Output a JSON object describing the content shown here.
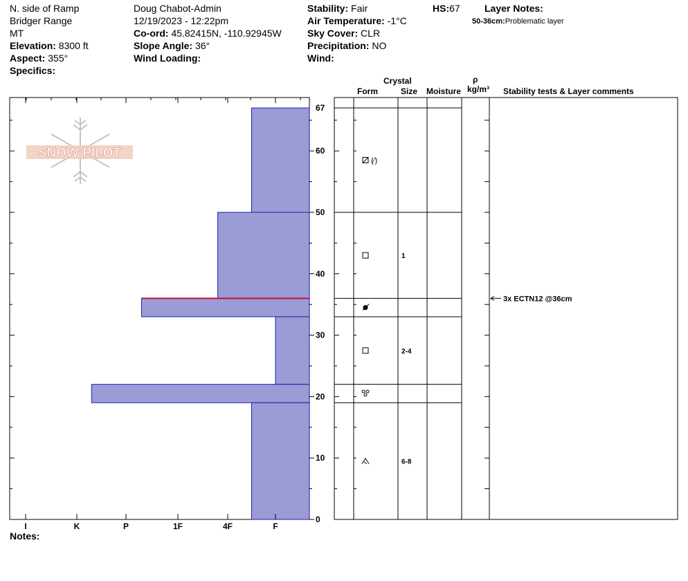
{
  "header": {
    "location": "N. side of Ramp",
    "range": "Bridger Range",
    "state": "MT",
    "elevation_label": "Elevation:",
    "elevation_value": "8300 ft",
    "aspect_label": "Aspect:",
    "aspect_value": "355°",
    "specifics_label": "Specifics:",
    "observer": "Doug Chabot-Admin",
    "datetime": "12/19/2023 - 12:22pm",
    "coord_label": "Co-ord:",
    "coord_value": "45.82415N, -110.92945W",
    "slope_label": "Slope Angle:",
    "slope_value": "36°",
    "wind_loading_label": "Wind Loading:",
    "stability_label": "Stability:",
    "stability_value": "Fair",
    "air_temp_label": "Air Temperature:",
    "air_temp_value": "-1°C",
    "sky_label": "Sky Cover:",
    "sky_value": "CLR",
    "precip_label": "Precipitation:",
    "precip_value": "NO",
    "wind_label": "Wind:",
    "hs_label": "HS:",
    "hs_value": "67",
    "layer_notes_label": "Layer Notes:",
    "layer_note_range": "50-36cm:",
    "layer_note_text": "Problematic layer"
  },
  "logo": {
    "text": "SNOW PILOT"
  },
  "columns": {
    "crystal": "Crystal",
    "form": "Form",
    "size": "Size",
    "moisture": "Moisture",
    "rho": "ρ",
    "density_unit": "kg/m³",
    "comments": "Stability tests & Layer comments"
  },
  "notes_label": "Notes:",
  "chart_data": {
    "type": "bar",
    "subtype": "snow-hardness-profile",
    "hardness_scale": [
      "I",
      "K",
      "P",
      "1F",
      "4F",
      "F"
    ],
    "ylim": [
      0,
      67
    ],
    "yticks": [
      0,
      10,
      20,
      30,
      40,
      50,
      60,
      67
    ],
    "layers": [
      {
        "bottom": 50,
        "top": 67,
        "hardness": 0.5,
        "form": "PPgp",
        "size": ""
      },
      {
        "bottom": 36,
        "top": 50,
        "hardness": 1.2,
        "form": "FC",
        "size": "1"
      },
      {
        "bottom": 33,
        "top": 36,
        "hardness": 2.7,
        "form": "MFcr",
        "size": ""
      },
      {
        "bottom": 22,
        "top": 33,
        "hardness": 0.0,
        "form": "FC",
        "size": "2-4"
      },
      {
        "bottom": 19,
        "top": 22,
        "hardness": 3.7,
        "form": "RGxf",
        "size": ""
      },
      {
        "bottom": 0,
        "top": 19,
        "hardness": 0.5,
        "form": "DH",
        "size": "6-8"
      }
    ],
    "critical_layer": 36,
    "stability_tests": [
      {
        "depth": 36,
        "text": "3x ECTN12 @36cm"
      }
    ]
  }
}
